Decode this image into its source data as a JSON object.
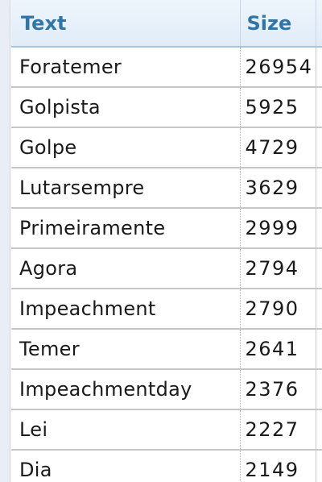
{
  "table": {
    "columns": [
      "Text",
      "Size"
    ],
    "rows": [
      {
        "text": "Foratemer",
        "size": "26954"
      },
      {
        "text": "Golpista",
        "size": "5925"
      },
      {
        "text": "Golpe",
        "size": "4729"
      },
      {
        "text": "Lutarsempre",
        "size": "3629"
      },
      {
        "text": "Primeiramente",
        "size": "2999"
      },
      {
        "text": "Agora",
        "size": "2794"
      },
      {
        "text": "Impeachment",
        "size": "2790"
      },
      {
        "text": "Temer",
        "size": "2641"
      },
      {
        "text": "Impeachmentday",
        "size": "2376"
      },
      {
        "text": "Lei",
        "size": "2227"
      },
      {
        "text": "Dia",
        "size": "2149"
      }
    ]
  },
  "colors": {
    "header_text": "#2f76a6",
    "header_background": "#e6eff9",
    "row_divider": "#c7c7c7"
  }
}
